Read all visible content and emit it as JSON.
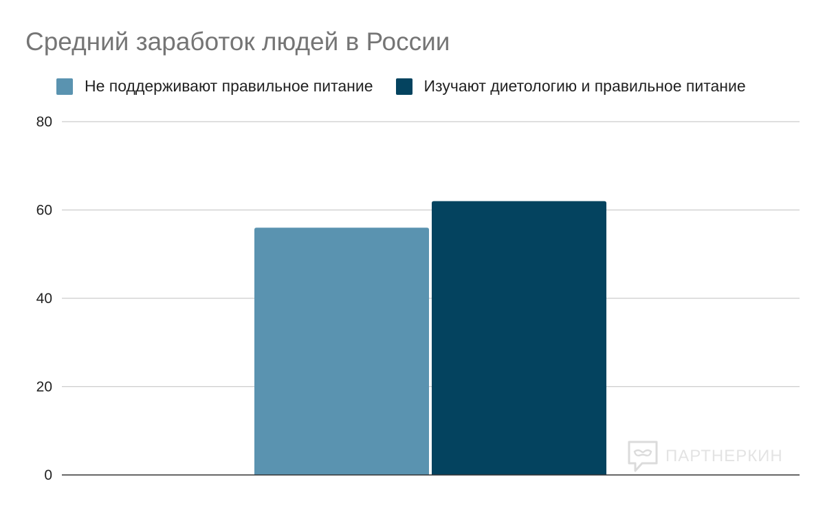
{
  "chart_data": {
    "type": "bar",
    "title": "Средний заработок людей в России",
    "xlabel": "",
    "ylabel": "",
    "categories": [
      ""
    ],
    "series": [
      {
        "name": "Не поддерживают правильное питание",
        "values": [
          56
        ],
        "color": "#5a93b0"
      },
      {
        "name": "Изучают диетологию и правильное питание",
        "values": [
          62
        ],
        "color": "#04435f"
      }
    ],
    "ylim": [
      0,
      80
    ],
    "yticks": [
      0,
      20,
      40,
      60,
      80
    ],
    "grid": true,
    "legend_position": "top-left"
  },
  "watermark": {
    "text": "ПАРТНЕРКИН",
    "icon": "speech-bubble-mask-icon"
  }
}
